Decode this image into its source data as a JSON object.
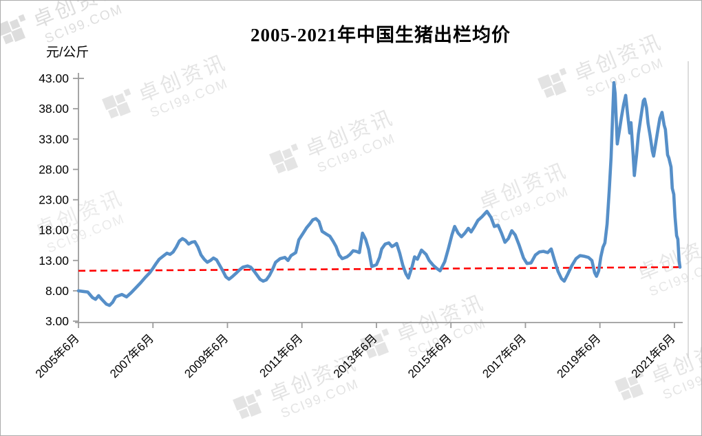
{
  "chart_data": {
    "type": "line",
    "title": "2005-2021年中国生猪出栏均价",
    "unit_label": "元/公斤",
    "legend_position": "none",
    "grid": false,
    "y_axis": {
      "min": 3,
      "max": 43,
      "step": 5,
      "tick_labels": [
        "43.00",
        "38.00",
        "33.00",
        "28.00",
        "23.00",
        "18.00",
        "13.00",
        "8.00",
        "3.00"
      ],
      "tick_values": [
        43,
        38,
        33,
        28,
        23,
        18,
        13,
        8,
        3
      ]
    },
    "x_axis": {
      "tick_labels": [
        "2005年6月",
        "2007年6月",
        "2009年6月",
        "2011年6月",
        "2013年6月",
        "2015年6月",
        "2017年6月",
        "2019年6月",
        "2021年6月"
      ],
      "tick_month_offsets": [
        0,
        24,
        48,
        72,
        96,
        120,
        144,
        168,
        192
      ],
      "unit": "months since 2005-06",
      "label_rotation_deg": -45
    },
    "series": [
      {
        "name": "生猪出栏均价",
        "color": "#568FC8",
        "points": [
          [
            0,
            8.0
          ],
          [
            1.5,
            7.9
          ],
          [
            3,
            7.8
          ],
          [
            4.5,
            6.9
          ],
          [
            5.5,
            6.6
          ],
          [
            6.5,
            7.2
          ],
          [
            7.5,
            6.6
          ],
          [
            9,
            5.8
          ],
          [
            10,
            5.6
          ],
          [
            11,
            6.1
          ],
          [
            12,
            7.0
          ],
          [
            13,
            7.2
          ],
          [
            14,
            7.4
          ],
          [
            15.5,
            7.0
          ],
          [
            17,
            7.7
          ],
          [
            18.5,
            8.5
          ],
          [
            20,
            9.3
          ],
          [
            21.5,
            10.2
          ],
          [
            23,
            11.0
          ],
          [
            24,
            11.7
          ],
          [
            25,
            12.5
          ],
          [
            26,
            13.2
          ],
          [
            27.5,
            13.8
          ],
          [
            28.5,
            14.2
          ],
          [
            29.5,
            14.0
          ],
          [
            30.5,
            14.4
          ],
          [
            31.5,
            15.2
          ],
          [
            32.5,
            16.2
          ],
          [
            33.5,
            16.6
          ],
          [
            34.5,
            16.3
          ],
          [
            35.5,
            15.7
          ],
          [
            36.5,
            16.0
          ],
          [
            37.5,
            16.1
          ],
          [
            38.5,
            15.2
          ],
          [
            39.5,
            13.9
          ],
          [
            40.5,
            13.2
          ],
          [
            41.5,
            12.7
          ],
          [
            42.5,
            13.0
          ],
          [
            43.5,
            13.4
          ],
          [
            44.5,
            13.1
          ],
          [
            45.5,
            12.2
          ],
          [
            46.5,
            11.3
          ],
          [
            47.5,
            10.3
          ],
          [
            48.5,
            9.9
          ],
          [
            49.5,
            10.3
          ],
          [
            51,
            11.0
          ],
          [
            52,
            11.5
          ],
          [
            53,
            11.9
          ],
          [
            54.5,
            12.1
          ],
          [
            55.5,
            11.9
          ],
          [
            56.5,
            11.3
          ],
          [
            57.5,
            10.6
          ],
          [
            58.5,
            9.9
          ],
          [
            59.5,
            9.6
          ],
          [
            60.5,
            9.8
          ],
          [
            61.5,
            10.5
          ],
          [
            62.5,
            11.5
          ],
          [
            63.5,
            12.7
          ],
          [
            65,
            13.3
          ],
          [
            66.5,
            13.5
          ],
          [
            67.5,
            13.0
          ],
          [
            68.5,
            13.8
          ],
          [
            70,
            14.3
          ],
          [
            71,
            16.4
          ],
          [
            72.5,
            17.6
          ],
          [
            73.5,
            18.4
          ],
          [
            74.5,
            19.0
          ],
          [
            75.5,
            19.7
          ],
          [
            76.5,
            19.9
          ],
          [
            77.5,
            19.4
          ],
          [
            78.5,
            17.8
          ],
          [
            80,
            17.3
          ],
          [
            81,
            17.0
          ],
          [
            82,
            16.2
          ],
          [
            83,
            15.3
          ],
          [
            84,
            13.9
          ],
          [
            85,
            13.3
          ],
          [
            86.5,
            13.6
          ],
          [
            87.5,
            14.0
          ],
          [
            88.5,
            14.6
          ],
          [
            89.5,
            14.5
          ],
          [
            90.5,
            14.3
          ],
          [
            91.5,
            17.5
          ],
          [
            92.5,
            16.5
          ],
          [
            93.5,
            14.8
          ],
          [
            94.5,
            12.0
          ],
          [
            96,
            12.3
          ],
          [
            97,
            13.5
          ],
          [
            97.7,
            14.9
          ],
          [
            98.8,
            15.7
          ],
          [
            100,
            15.9
          ],
          [
            101,
            15.3
          ],
          [
            101.7,
            15.5
          ],
          [
            102.5,
            15.8
          ],
          [
            103.5,
            14.2
          ],
          [
            104.5,
            12.2
          ],
          [
            105.5,
            10.8
          ],
          [
            106.3,
            10.1
          ],
          [
            107.5,
            12.0
          ],
          [
            108.3,
            13.6
          ],
          [
            109.2,
            13.2
          ],
          [
            110.5,
            14.7
          ],
          [
            112,
            14.0
          ],
          [
            113,
            13.0
          ],
          [
            114.3,
            12.2
          ],
          [
            115.4,
            11.7
          ],
          [
            116.5,
            11.3
          ],
          [
            118,
            12.8
          ],
          [
            119.2,
            15.0
          ],
          [
            120.3,
            17.2
          ],
          [
            121.2,
            18.6
          ],
          [
            122.3,
            17.5
          ],
          [
            123.4,
            16.9
          ],
          [
            124.5,
            17.5
          ],
          [
            125.6,
            18.3
          ],
          [
            126.5,
            17.7
          ],
          [
            127.6,
            18.6
          ],
          [
            128.7,
            19.6
          ],
          [
            130,
            20.2
          ],
          [
            131.6,
            21.1
          ],
          [
            132.9,
            20.1
          ],
          [
            134,
            18.6
          ],
          [
            135.2,
            18.8
          ],
          [
            136.3,
            17.5
          ],
          [
            137.4,
            16.0
          ],
          [
            138.5,
            16.6
          ],
          [
            139.6,
            17.9
          ],
          [
            140.7,
            17.2
          ],
          [
            142,
            15.5
          ],
          [
            143.4,
            13.4
          ],
          [
            144.5,
            12.5
          ],
          [
            145.8,
            12.6
          ],
          [
            147.2,
            13.9
          ],
          [
            148.5,
            14.4
          ],
          [
            149.8,
            14.5
          ],
          [
            151.2,
            14.3
          ],
          [
            152.3,
            14.9
          ],
          [
            153.4,
            13.0
          ],
          [
            154.5,
            11.2
          ],
          [
            155.6,
            10.0
          ],
          [
            156.5,
            9.6
          ],
          [
            157.6,
            10.7
          ],
          [
            158.9,
            12.1
          ],
          [
            160.3,
            13.3
          ],
          [
            161.6,
            13.8
          ],
          [
            162.9,
            13.7
          ],
          [
            164.3,
            13.5
          ],
          [
            165.4,
            13.0
          ],
          [
            166.3,
            11.0
          ],
          [
            166.9,
            10.4
          ],
          [
            167.6,
            11.3
          ],
          [
            168.3,
            13.6
          ],
          [
            169,
            15.2
          ],
          [
            169.6,
            15.9
          ],
          [
            170.3,
            19.0
          ],
          [
            171,
            24.5
          ],
          [
            171.6,
            30.0
          ],
          [
            172.1,
            37.0
          ],
          [
            172.5,
            42.3
          ],
          [
            172.9,
            40.5
          ],
          [
            173.6,
            32.2
          ],
          [
            174.3,
            34.5
          ],
          [
            174.9,
            36.5
          ],
          [
            175.6,
            38.6
          ],
          [
            176.3,
            40.2
          ],
          [
            176.9,
            37.2
          ],
          [
            177.6,
            34.0
          ],
          [
            178,
            35.7
          ],
          [
            178.7,
            30.5
          ],
          [
            179.1,
            27.0
          ],
          [
            179.8,
            30.4
          ],
          [
            180.4,
            33.8
          ],
          [
            181.1,
            36.3
          ],
          [
            182,
            39.3
          ],
          [
            182.4,
            39.6
          ],
          [
            183,
            38.2
          ],
          [
            183.5,
            35.6
          ],
          [
            184.2,
            33.5
          ],
          [
            184.9,
            31.0
          ],
          [
            185.3,
            30.2
          ],
          [
            186,
            32.4
          ],
          [
            186.7,
            34.6
          ],
          [
            187.3,
            36.4
          ],
          [
            188,
            37.4
          ],
          [
            188.7,
            35.3
          ],
          [
            189.1,
            34.6
          ],
          [
            189.8,
            30.4
          ],
          [
            190.2,
            29.9
          ],
          [
            190.9,
            28.4
          ],
          [
            191.3,
            24.9
          ],
          [
            191.8,
            23.9
          ],
          [
            192.2,
            20.2
          ],
          [
            192.7,
            17.1
          ],
          [
            193.1,
            16.5
          ],
          [
            193.5,
            13.0
          ],
          [
            193.8,
            11.9
          ]
        ]
      }
    ],
    "reference_line": {
      "style": "dashed",
      "color": "#FF0000",
      "start_value": 11.3,
      "end_value": 11.9,
      "description": "red dashed reference/trend line"
    },
    "watermark": {
      "line1": "卓创资讯",
      "line2": "SCI99.COM"
    },
    "colors": {
      "line": "#568FC8",
      "reference": "#FF0000",
      "axis": "#9b9b9b",
      "text": "#000000"
    }
  }
}
